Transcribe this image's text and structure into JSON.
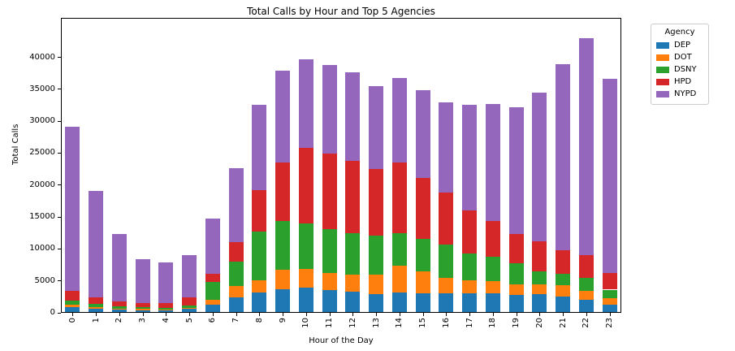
{
  "figure": {
    "title": "Total Calls by Hour and Top 5 Agencies"
  },
  "axes": {
    "xlabel": "Hour of the Day",
    "ylabel": "Total Calls",
    "yticks": [
      0,
      5000,
      10000,
      15000,
      20000,
      25000,
      30000,
      35000,
      40000
    ],
    "ymax": 46100
  },
  "legend": {
    "title": "Agency",
    "entries": [
      {
        "label": "DEP",
        "color": "#1f77b4"
      },
      {
        "label": "DOT",
        "color": "#ff7f0e"
      },
      {
        "label": "DSNY",
        "color": "#2ca02c"
      },
      {
        "label": "HPD",
        "color": "#d62728"
      },
      {
        "label": "NYPD",
        "color": "#9467bd"
      }
    ]
  },
  "chart_data": {
    "type": "bar",
    "stacked": true,
    "title": "Total Calls by Hour and Top 5 Agencies",
    "xlabel": "Hour of the Day",
    "ylabel": "Total Calls",
    "legend_title": "Agency",
    "legend_position": "outside upper right",
    "grid": false,
    "xtick_rotation": 90,
    "ylim": [
      0,
      46100
    ],
    "categories": [
      "0",
      "1",
      "2",
      "3",
      "4",
      "5",
      "6",
      "7",
      "8",
      "9",
      "10",
      "11",
      "12",
      "13",
      "14",
      "15",
      "16",
      "17",
      "18",
      "19",
      "20",
      "21",
      "22",
      "23"
    ],
    "series": [
      {
        "name": "DEP",
        "color": "#1f77b4",
        "values": [
          750,
          550,
          350,
          280,
          230,
          450,
          1100,
          2300,
          3100,
          3500,
          3800,
          3400,
          3200,
          2800,
          3000,
          2900,
          2900,
          2900,
          2900,
          2700,
          2800,
          2400,
          1900,
          1100
        ]
      },
      {
        "name": "DOT",
        "color": "#ff7f0e",
        "values": [
          350,
          250,
          200,
          170,
          170,
          210,
          850,
          1800,
          1900,
          3100,
          3000,
          2700,
          2600,
          3100,
          4200,
          3500,
          2500,
          2100,
          1900,
          1600,
          1500,
          1800,
          1400,
          1100
        ]
      },
      {
        "name": "DSNY",
        "color": "#2ca02c",
        "values": [
          650,
          450,
          350,
          300,
          300,
          380,
          2750,
          3800,
          7600,
          7600,
          7100,
          6900,
          6500,
          6000,
          5100,
          5000,
          5100,
          4100,
          3900,
          3300,
          2000,
          1800,
          2000,
          1300
        ]
      },
      {
        "name": "HPD",
        "color": "#d62728",
        "values": [
          1600,
          1050,
          780,
          630,
          760,
          1190,
          1300,
          3100,
          6500,
          9200,
          11800,
          11800,
          11300,
          10500,
          11100,
          9600,
          8200,
          6800,
          5500,
          4600,
          4800,
          3700,
          3600,
          2600
        ]
      },
      {
        "name": "NYPD",
        "color": "#9467bd",
        "values": [
          25650,
          16700,
          10520,
          6920,
          6240,
          6670,
          8600,
          11500,
          13400,
          14400,
          13800,
          13900,
          13900,
          13000,
          13300,
          13700,
          14100,
          16600,
          18400,
          19800,
          23300,
          29100,
          34000,
          30400
        ]
      }
    ],
    "totals": [
      29000,
      19000,
      12200,
      8300,
      7700,
      8900,
      14600,
      22500,
      32500,
      37800,
      39500,
      38700,
      37500,
      35400,
      36700,
      34700,
      32800,
      32500,
      32600,
      32000,
      34400,
      38800,
      42900,
      36500
    ]
  }
}
